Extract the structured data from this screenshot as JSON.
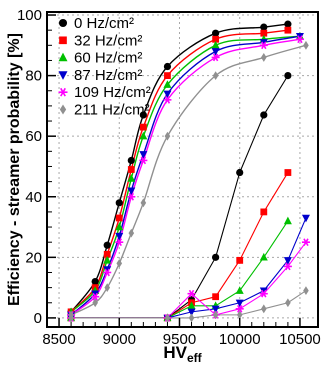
{
  "chart_data": {
    "type": "scatter",
    "xlabel": "HV",
    "xlabel_sub": "eff",
    "ylabel": "Efficiency - streamer probability [%]",
    "xlim": [
      8400,
      10650
    ],
    "ylim": [
      -3,
      101
    ],
    "xticks": [
      8500,
      9000,
      9500,
      10000,
      10500
    ],
    "yticks": [
      0,
      20,
      40,
      60,
      80,
      100
    ],
    "grid": true,
    "legend_position": "top-left",
    "series": [
      {
        "name": "0 Hz/cm²",
        "color": "#000000",
        "marker": "circle",
        "efficiency": {
          "x": [
            8600,
            8800,
            8900,
            9000,
            9100,
            9200,
            9400,
            9800,
            10200,
            10400
          ],
          "y": [
            2,
            12,
            24,
            38,
            52,
            67,
            83,
            94,
            96,
            97
          ]
        },
        "streamer": {
          "x": [
            8600,
            9400,
            9600,
            9800,
            10000,
            10200,
            10400
          ],
          "y": [
            0,
            0,
            6,
            20,
            48,
            67,
            80
          ]
        }
      },
      {
        "name": "32 Hz/cm²",
        "color": "#ff0000",
        "marker": "square",
        "efficiency": {
          "x": [
            8600,
            8800,
            8900,
            9000,
            9100,
            9200,
            9400,
            9800,
            10200,
            10400
          ],
          "y": [
            2,
            10,
            21,
            33,
            49,
            63,
            80,
            92,
            94,
            95
          ]
        },
        "streamer": {
          "x": [
            8600,
            9400,
            9600,
            9800,
            10000,
            10200,
            10400
          ],
          "y": [
            0,
            0,
            5,
            7,
            19,
            35,
            48
          ]
        }
      },
      {
        "name": "60 Hz/cm²",
        "color": "#00c000",
        "marker": "triangle-up",
        "efficiency": {
          "x": [
            8600,
            8800,
            8900,
            9000,
            9100,
            9200,
            9400,
            9800,
            10200,
            10500
          ],
          "y": [
            2,
            9,
            19,
            30,
            46,
            60,
            77,
            90,
            92,
            93
          ]
        },
        "streamer": {
          "x": [
            8600,
            9400,
            9600,
            9800,
            10000,
            10200,
            10400
          ],
          "y": [
            0,
            0,
            4,
            4,
            9,
            20,
            32
          ]
        }
      },
      {
        "name": "87 Hz/cm²",
        "color": "#0000cc",
        "marker": "triangle-down",
        "efficiency": {
          "x": [
            8600,
            8800,
            8900,
            9000,
            9100,
            9200,
            9400,
            9800,
            10200,
            10500
          ],
          "y": [
            1,
            8,
            16,
            27,
            42,
            54,
            74,
            88,
            91,
            93
          ]
        },
        "streamer": {
          "x": [
            8600,
            9400,
            9600,
            9800,
            10000,
            10200,
            10400,
            10550
          ],
          "y": [
            0,
            0,
            2,
            3,
            5,
            9,
            19,
            33
          ]
        }
      },
      {
        "name": "109 Hz/cm²",
        "color": "#ff00ff",
        "marker": "star",
        "efficiency": {
          "x": [
            8600,
            8800,
            8900,
            9000,
            9100,
            9200,
            9400,
            9800,
            10200,
            10500
          ],
          "y": [
            1,
            7,
            15,
            25,
            40,
            52,
            72,
            86,
            90,
            92
          ]
        },
        "streamer": {
          "x": [
            8600,
            9400,
            9600,
            9800,
            10000,
            10200,
            10400,
            10550
          ],
          "y": [
            0,
            0,
            8,
            1,
            3,
            8,
            17,
            25
          ]
        }
      },
      {
        "name": "211 Hz/cm²",
        "color": "#909090",
        "marker": "diamond",
        "efficiency": {
          "x": [
            8600,
            8800,
            8900,
            9000,
            9100,
            9200,
            9400,
            9800,
            10200,
            10550
          ],
          "y": [
            1,
            5,
            10,
            18,
            28,
            38,
            60,
            80,
            86,
            90
          ]
        },
        "streamer": {
          "x": [
            8600,
            9400,
            9600,
            9800,
            10000,
            10200,
            10400,
            10550
          ],
          "y": [
            0,
            0,
            0,
            1,
            1,
            3,
            5,
            9
          ]
        }
      }
    ]
  }
}
